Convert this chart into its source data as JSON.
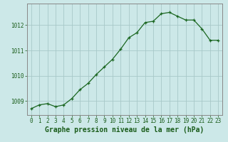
{
  "hours": [
    0,
    1,
    2,
    3,
    4,
    5,
    6,
    7,
    8,
    9,
    10,
    11,
    12,
    13,
    14,
    15,
    16,
    17,
    18,
    19,
    20,
    21,
    22,
    23
  ],
  "pressure": [
    1008.7,
    1008.85,
    1008.9,
    1008.78,
    1008.85,
    1009.1,
    1009.45,
    1009.7,
    1010.05,
    1010.35,
    1010.65,
    1011.05,
    1011.5,
    1011.7,
    1012.1,
    1012.15,
    1012.45,
    1012.5,
    1012.35,
    1012.2,
    1012.2,
    1011.85,
    1011.4,
    1011.4
  ],
  "line_color": "#1a6620",
  "marker": "+",
  "bg_color": "#cce8e8",
  "grid_color_major": "#a8c8c8",
  "grid_color_minor": "#c0d8d8",
  "border_color": "#888888",
  "xlabel": "Graphe pression niveau de la mer (hPa)",
  "xlabel_color": "#1a5c1a",
  "tick_color": "#1a5c1a",
  "ylim": [
    1008.45,
    1012.85
  ],
  "yticks": [
    1009,
    1010,
    1011,
    1012
  ],
  "xticks": [
    0,
    1,
    2,
    3,
    4,
    5,
    6,
    7,
    8,
    9,
    10,
    11,
    12,
    13,
    14,
    15,
    16,
    17,
    18,
    19,
    20,
    21,
    22,
    23
  ],
  "tick_fontsize": 5.5,
  "xlabel_fontsize": 7.0
}
